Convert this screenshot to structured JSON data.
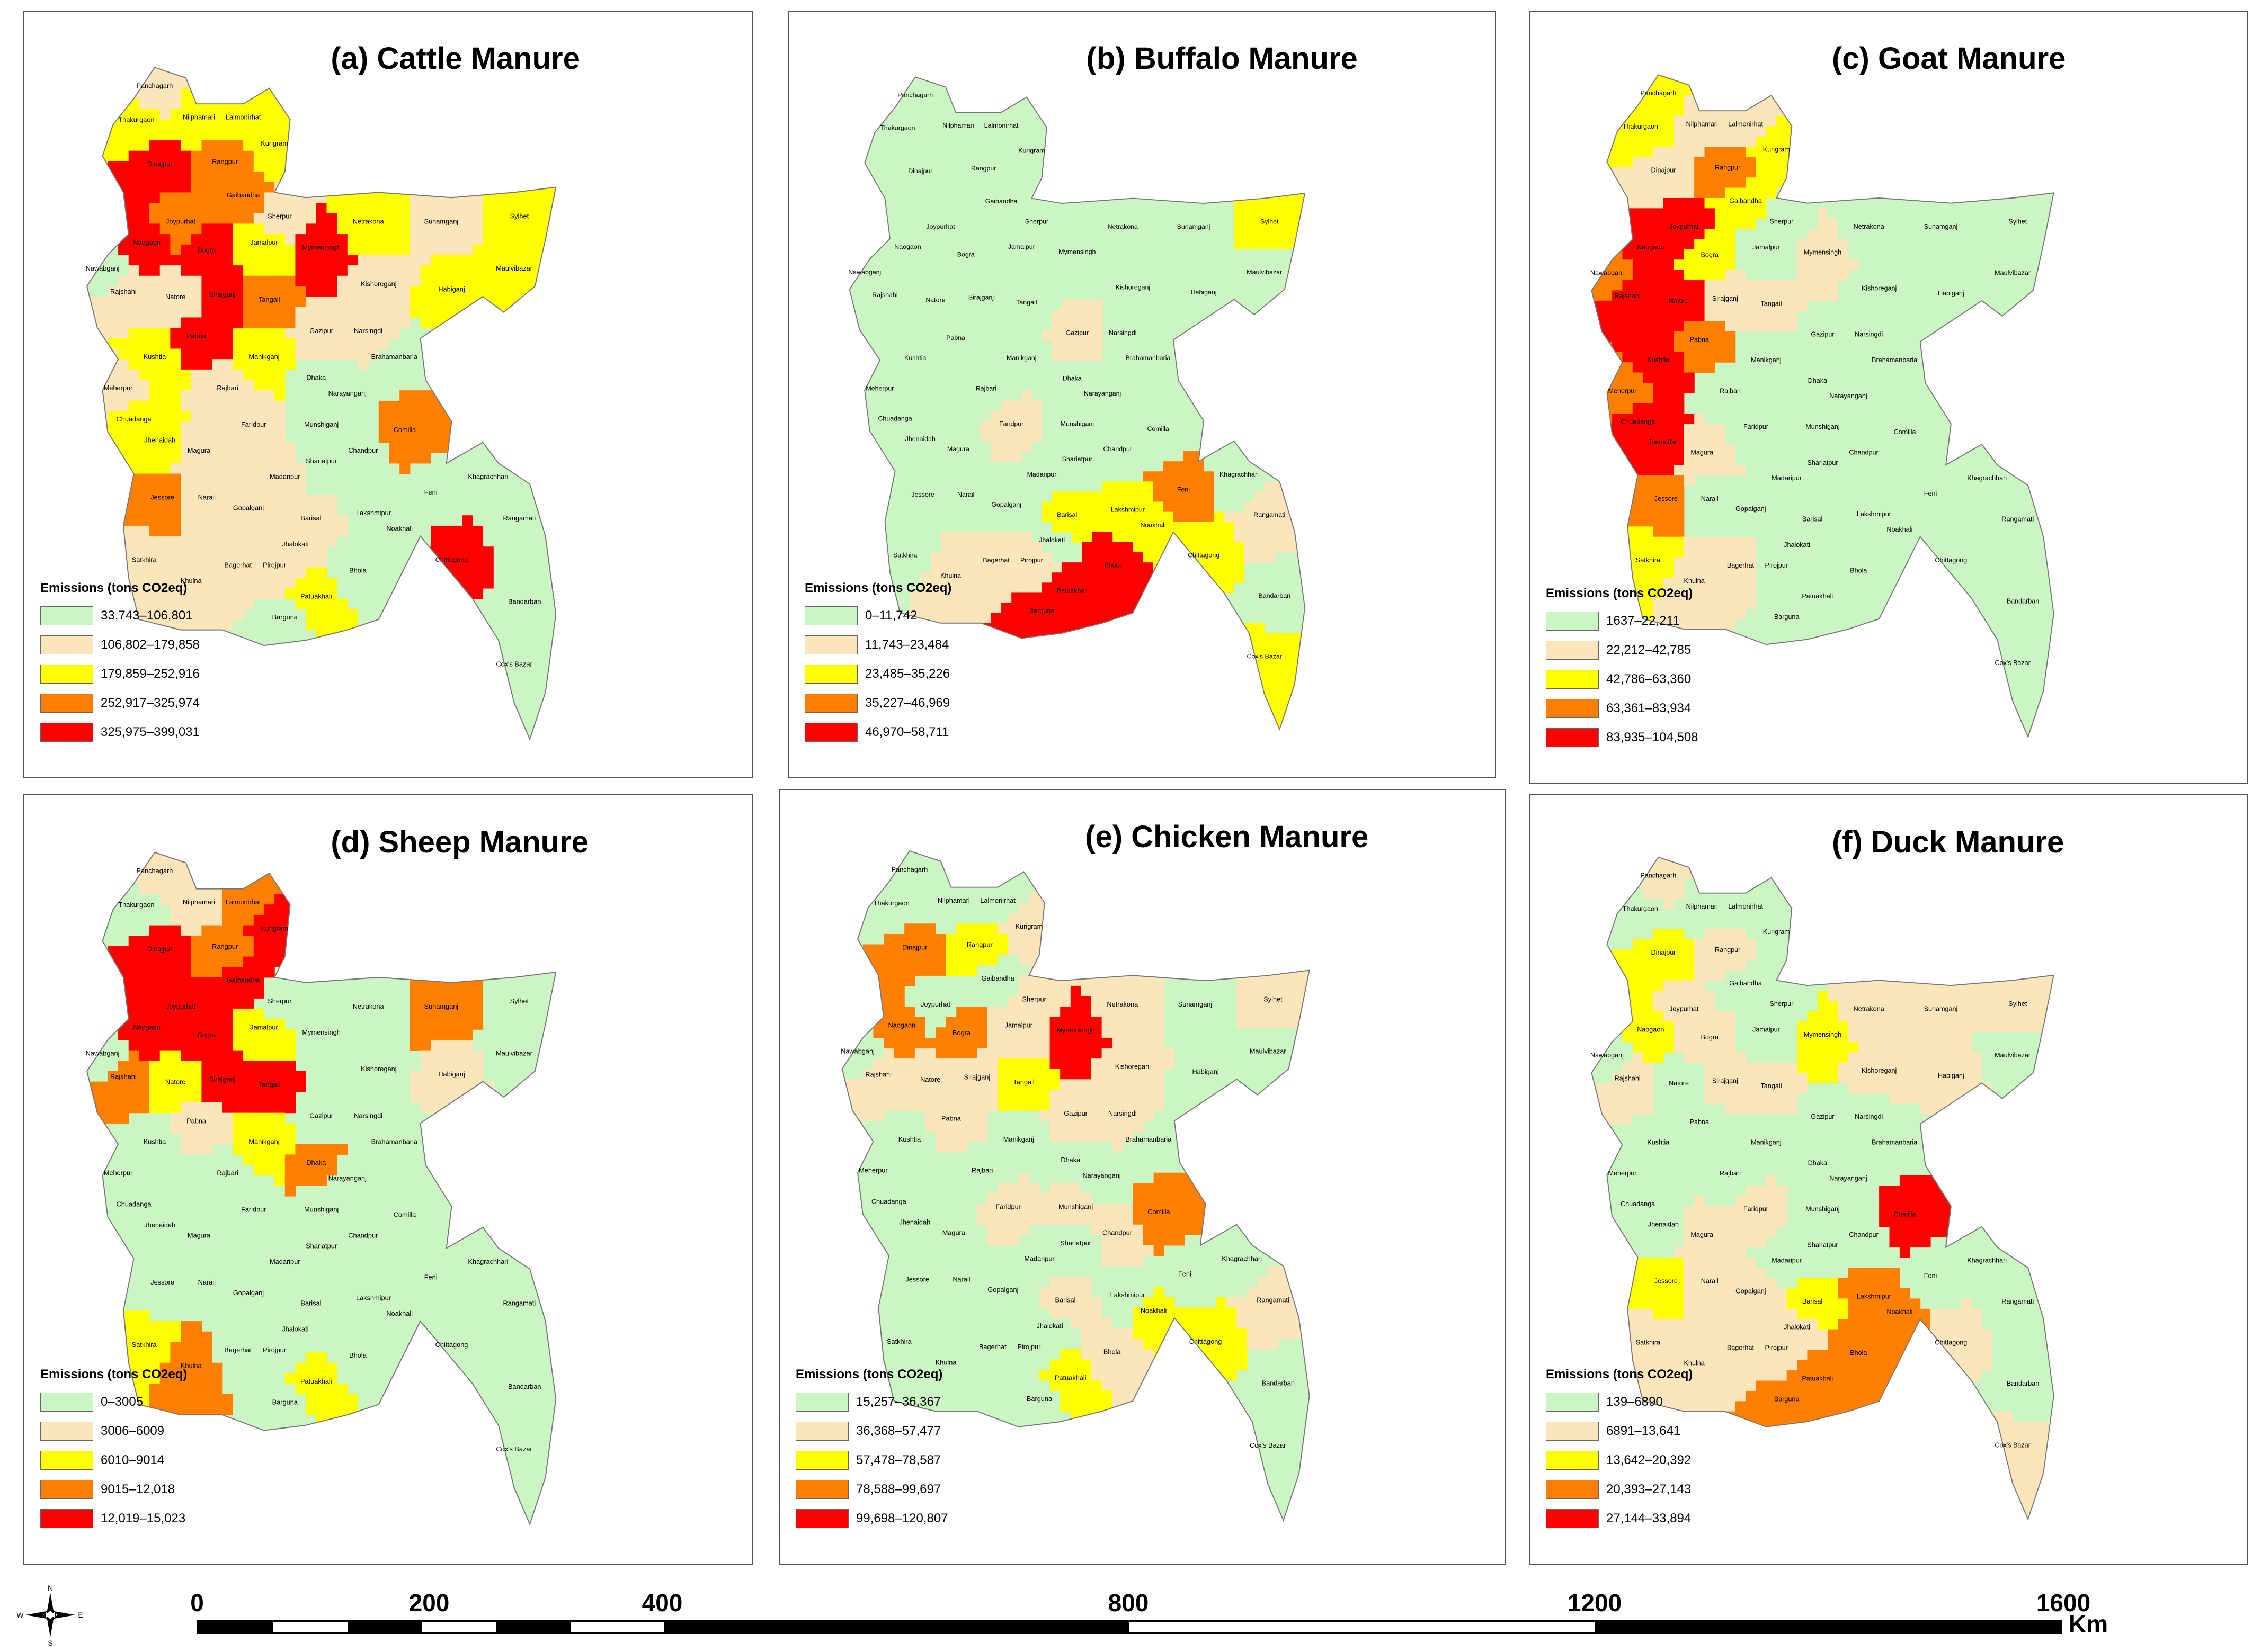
{
  "figure": {
    "compass": {
      "n": "N",
      "s": "S",
      "e": "E",
      "w": "W"
    },
    "scale": {
      "ticks": [
        "0",
        "200",
        "400",
        "800",
        "1200",
        "1600"
      ],
      "unit": "Km"
    }
  },
  "class_colors": [
    "#ccf5c4",
    "#fbe5bb",
    "#ffff00",
    "#ff8000",
    "#ff0000"
  ],
  "districts": [
    "Panchagarh",
    "Thakurgaon",
    "Nilphamari",
    "Lalmonirhat",
    "Kurigram",
    "Dinajpur",
    "Rangpur",
    "Gaibandha",
    "Joypurhat",
    "Naogaon",
    "Nawabganj",
    "Rajshahi",
    "Bogra",
    "Natore",
    "Sirajganj",
    "Pabna",
    "Sherpur",
    "Jamalpur",
    "Mymensingh",
    "Netrakona",
    "Sunamganj",
    "Sylhet",
    "Kishoreganj",
    "Habiganj",
    "Maulvibazar",
    "Tangail",
    "Gazipur",
    "Narsingdi",
    "Brahamanbaria",
    "Kushtia",
    "Meherpur",
    "Chuadanga",
    "Jhenaidah",
    "Magura",
    "Rajbari",
    "Manikganj",
    "Dhaka",
    "Narayanganj",
    "Faridpur",
    "Munshiganj",
    "Shariatpur",
    "Madaripur",
    "Gopalganj",
    "Chandpur",
    "Comilla",
    "Feni",
    "Lakshmipur",
    "Noakhali",
    "Khagrachhari",
    "Rangamati",
    "Chittagong",
    "Bandarban",
    "Cox's Bazar",
    "Jessore",
    "Narail",
    "Satkhira",
    "Khulna",
    "Bagerhat",
    "Pirojpur",
    "Jhalokati",
    "Barisal",
    "Bhola",
    "Patuakhali",
    "Barguna"
  ],
  "panels": [
    {
      "id": "cattle",
      "title": "(a) Cattle Manure",
      "legend_title": "Emissions (tons CO2eq)",
      "classes": [
        "33,743–106,801",
        "106,802–179,858",
        "179,859–252,916",
        "252,917–325,974",
        "325,975–399,031"
      ],
      "high": {
        "Dinajpur": 4,
        "Naogaon": 4,
        "Bogra": 4,
        "Sirajganj": 4,
        "Pabna": 4,
        "Mymensingh": 4,
        "Chittagong": 4,
        "Rangpur": 3,
        "Gaibandha": 3,
        "Tangail": 3,
        "Comilla": 3,
        "Jessore": 3,
        "Joypurhat": 3,
        "Nilphamari": 2,
        "Lalmonirhat": 2,
        "Kurigram": 2,
        "Netrakona": 2,
        "Sylhet": 2,
        "Habiganj": 2,
        "Jamalpur": 2,
        "Kushtia": 2,
        "Jhenaidah": 2,
        "Chuadanga": 2,
        "Patuakhali": 2,
        "Panchagarh": 1,
        "Thakurgaon": 2,
        "Sherpur": 1,
        "Sunamganj": 1,
        "Maulvibazar": 2,
        "Natore": 1,
        "Rajshahi": 1,
        "Manikganj": 2,
        "Faridpur": 1,
        "Magura": 1,
        "Rajbari": 1,
        "Kishoreganj": 1,
        "Gazipur": 1,
        "Narsingdi": 1,
        "Satkhira": 1,
        "Khulna": 1,
        "Bagerhat": 1,
        "Barisal": 1,
        "Pirojpur": 1,
        "Jhalokati": 1,
        "Madaripur": 1,
        "Gopalganj": 1,
        "Narail": 1,
        "Meherpur": 1,
        "Nawabganj": 0
      }
    },
    {
      "id": "buffalo",
      "title": "(b) Buffalo Manure",
      "legend_title": "Emissions (tons CO2eq)",
      "classes": [
        "0–11,742",
        "11,743–23,484",
        "23,485–35,226",
        "35,227–46,969",
        "46,970–58,711"
      ],
      "high": {
        "Patuakhali": 4,
        "Bhola": 4,
        "Barguna": 4,
        "Feni": 3,
        "Sylhet": 2,
        "Chittagong": 2,
        "Barisal": 2,
        "Noakhali": 2,
        "Lakshmipur": 2,
        "Cox's Bazar": 2,
        "Gazipur": 1,
        "Faridpur": 1,
        "Bagerhat": 1,
        "Khulna": 1,
        "Rangamati": 1,
        "Pirojpur": 1
      }
    },
    {
      "id": "goat",
      "title": "(c) Goat Manure",
      "legend_title": "Emissions (tons CO2eq)",
      "classes": [
        "1637–22,211",
        "22,212–42,785",
        "42,786–63,360",
        "63,361–83,934",
        "83,935–104,508"
      ],
      "high": {
        "Naogaon": 4,
        "Joypurhat": 4,
        "Rajshahi": 4,
        "Natore": 4,
        "Kushtia": 4,
        "Chuadanga": 4,
        "Jhenaidah": 4,
        "Nawabganj": 3,
        "Rangpur": 3,
        "Pabna": 3,
        "Meherpur": 3,
        "Jessore": 3,
        "Panchagarh": 2,
        "Thakurgaon": 2,
        "Kurigram": 2,
        "Gaibandha": 2,
        "Bogra": 2,
        "Satkhira": 2,
        "Dinajpur": 1,
        "Nilphamari": 1,
        "Lalmonirhat": 1,
        "Sirajganj": 1,
        "Tangail": 1,
        "Mymensingh": 1,
        "Magura": 1,
        "Khulna": 1,
        "Bagerhat": 1
      }
    },
    {
      "id": "sheep",
      "title": "(d) Sheep Manure",
      "legend_title": "Emissions (tons CO2eq)",
      "classes": [
        "0–3005",
        "3006–6009",
        "6010–9014",
        "9015–12,018",
        "12,019–15,023"
      ],
      "high": {
        "Dinajpur": 4,
        "Kurigram": 4,
        "Gaibandha": 4,
        "Naogaon": 4,
        "Bogra": 4,
        "Sirajganj": 4,
        "Tangail": 4,
        "Joypurhat": 4,
        "Rangpur": 3,
        "Sunamganj": 3,
        "Rajshahi": 3,
        "Khulna": 3,
        "Dhaka": 3,
        "Lalmonirhat": 3,
        "Jamalpur": 2,
        "Natore": 2,
        "Satkhira": 2,
        "Patuakhali": 2,
        "Manikganj": 2,
        "Panchagarh": 1,
        "Nilphamari": 1,
        "Pabna": 1,
        "Habiganj": 1
      }
    },
    {
      "id": "chicken",
      "title": "(e) Chicken Manure",
      "legend_title": "Emissions (tons CO2eq)",
      "classes": [
        "15,257–36,367",
        "36,368–57,477",
        "57,478–78,587",
        "78,588–99,697",
        "99,698–120,807"
      ],
      "high": {
        "Mymensingh": 4,
        "Dinajpur": 3,
        "Naogaon": 3,
        "Bogra": 3,
        "Comilla": 3,
        "Rangpur": 2,
        "Tangail": 2,
        "Chittagong": 2,
        "Patuakhali": 2,
        "Noakhali": 2,
        "Kurigram": 1,
        "Sherpur": 1,
        "Jamalpur": 1,
        "Netrakona": 1,
        "Sylhet": 1,
        "Rajshahi": 1,
        "Sirajganj": 1,
        "Pabna": 1,
        "Natore": 1,
        "Gazipur": 1,
        "Narsingdi": 1,
        "Kishoreganj": 1,
        "Faridpur": 1,
        "Munshiganj": 1,
        "Chandpur": 1,
        "Barisal": 1,
        "Rangamati": 1,
        "Bhola": 1
      }
    },
    {
      "id": "duck",
      "title": "(f) Duck Manure",
      "legend_title": "Emissions (tons CO2eq)",
      "classes": [
        "139–6890",
        "6891–13,641",
        "13,642–20,392",
        "20,393–27,143",
        "27,144–33,894"
      ],
      "high": {
        "Comilla": 4,
        "Patuakhali": 3,
        "Bhola": 3,
        "Barguna": 3,
        "Noakhali": 3,
        "Lakshmipur": 3,
        "Dinajpur": 2,
        "Naogaon": 2,
        "Mymensingh": 2,
        "Jessore": 2,
        "Barisal": 2,
        "Panchagarh": 1,
        "Rangpur": 1,
        "Joypurhat": 1,
        "Bogra": 1,
        "Sunamganj": 1,
        "Netrakona": 1,
        "Sylhet": 1,
        "Habiganj": 1,
        "Kishoreganj": 1,
        "Tangail": 1,
        "Rajshahi": 1,
        "Sirajganj": 1,
        "Khulna": 1,
        "Bagerhat": 1,
        "Satkhira": 1,
        "Magura": 1,
        "Narail": 1,
        "Gopalganj": 1,
        "Faridpur": 1,
        "Chittagong": 1,
        "Cox's Bazar": 1,
        "Pirojpur": 1,
        "Jhalokati": 1
      }
    }
  ]
}
